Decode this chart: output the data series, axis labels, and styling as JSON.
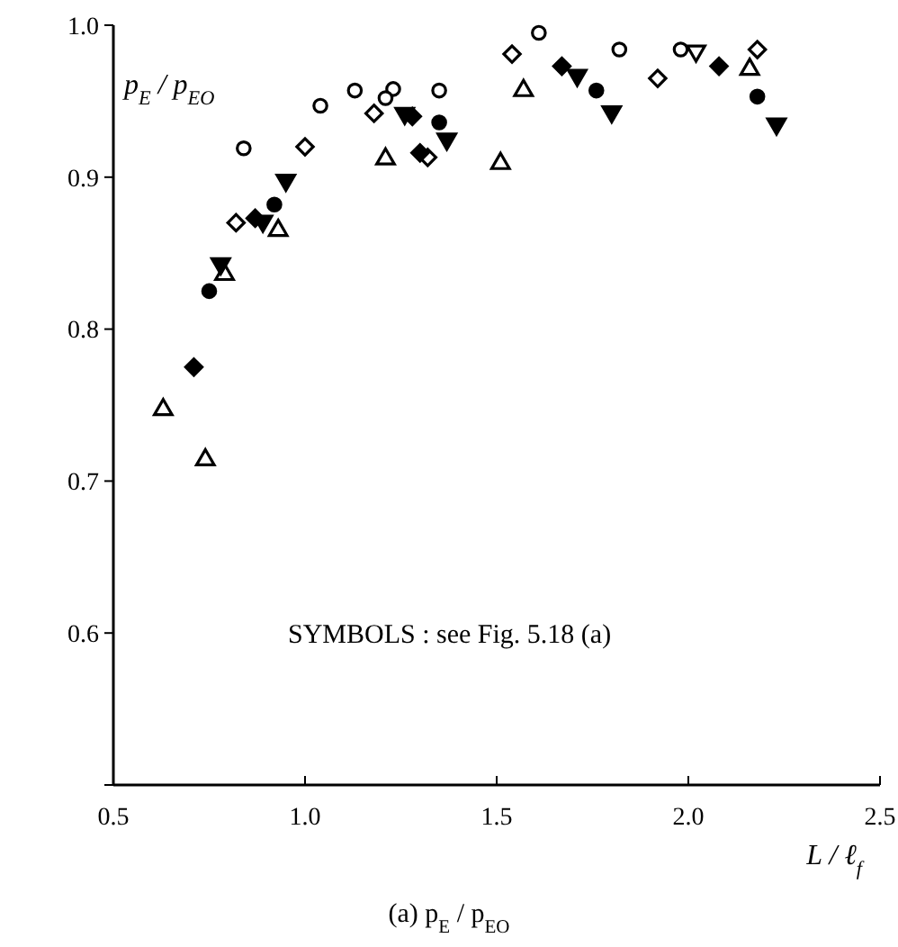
{
  "chart_data": {
    "type": "scatter",
    "title": "(a) p$_{E}$ / p$_{EO}$",
    "xlabel": "L / ℓ$_{f}$",
    "ylabel": "p$_{E}$ / p$_{EO}$",
    "annotations": [
      "SYMBOLS : see Fig. 5.18 (a)"
    ],
    "xlim": [
      0.5,
      2.5
    ],
    "xticks": [
      {
        "value": 0.5,
        "label": "0.5"
      },
      {
        "value": 1,
        "label": "1.0"
      },
      {
        "value": 1.5,
        "label": "1.5"
      },
      {
        "value": 2,
        "label": "2.0"
      },
      {
        "value": 2.5,
        "label": "2.5"
      }
    ],
    "ylim": [
      0.5,
      1.0
    ],
    "yticks": [
      {
        "value": 0.5,
        "label": null
      },
      {
        "value": 0.6,
        "label": "0.6"
      },
      {
        "value": 0.7,
        "label": "0.7"
      },
      {
        "value": 0.8,
        "label": "0.8"
      },
      {
        "value": 0.9,
        "label": "0.9"
      },
      {
        "value": 1,
        "label": "1.0"
      }
    ],
    "grid": false,
    "series": [
      {
        "marker": "circle",
        "color": "#ffffff",
        "x": [
          0.84,
          1.04,
          1.23,
          1.61
        ],
        "values": [
          0.919,
          0.947,
          0.958,
          0.995
        ]
      },
      {
        "marker": "circle",
        "color": "#ffffff",
        "x": [
          1.13,
          1.35,
          1.21,
          1.82,
          1.98
        ],
        "values": [
          0.957,
          0.957,
          0.952,
          0.984,
          0.984
        ]
      },
      {
        "marker": "diamond",
        "color": "#ffffff",
        "x": [
          0.82,
          1.0,
          1.18,
          1.54,
          1.92,
          2.18,
          1.32
        ],
        "values": [
          0.87,
          0.92,
          0.942,
          0.981,
          0.965,
          0.984,
          0.913
        ]
      },
      {
        "marker": "triangle",
        "color": "#ffffff",
        "x": [
          0.63,
          0.74,
          0.93,
          1.21,
          1.51,
          0.79,
          2.16,
          1.57
        ],
        "values": [
          0.747,
          0.714,
          0.865,
          0.912,
          0.909,
          0.836,
          0.971,
          0.957
        ]
      },
      {
        "marker": "triangle-down",
        "color": "#ffffff",
        "x": [
          2.02
        ],
        "values": [
          0.983
        ]
      },
      {
        "marker": "circle",
        "color": "#000000",
        "x": [
          0.75,
          0.92,
          1.35,
          1.76,
          2.18
        ],
        "values": [
          0.825,
          0.882,
          0.936,
          0.957,
          0.953
        ]
      },
      {
        "marker": "diamond",
        "color": "#000000",
        "x": [
          0.71,
          0.87,
          1.28,
          1.3,
          1.67,
          2.08
        ],
        "values": [
          0.775,
          0.873,
          0.94,
          0.916,
          0.973,
          0.973
        ]
      },
      {
        "marker": "triangle-down",
        "color": "#000000",
        "x": [
          0.78,
          0.95,
          1.37,
          0.89,
          1.26,
          1.71,
          1.8,
          2.23
        ],
        "values": [
          0.843,
          0.898,
          0.925,
          0.871,
          0.942,
          0.967,
          0.943,
          0.935
        ]
      }
    ]
  }
}
